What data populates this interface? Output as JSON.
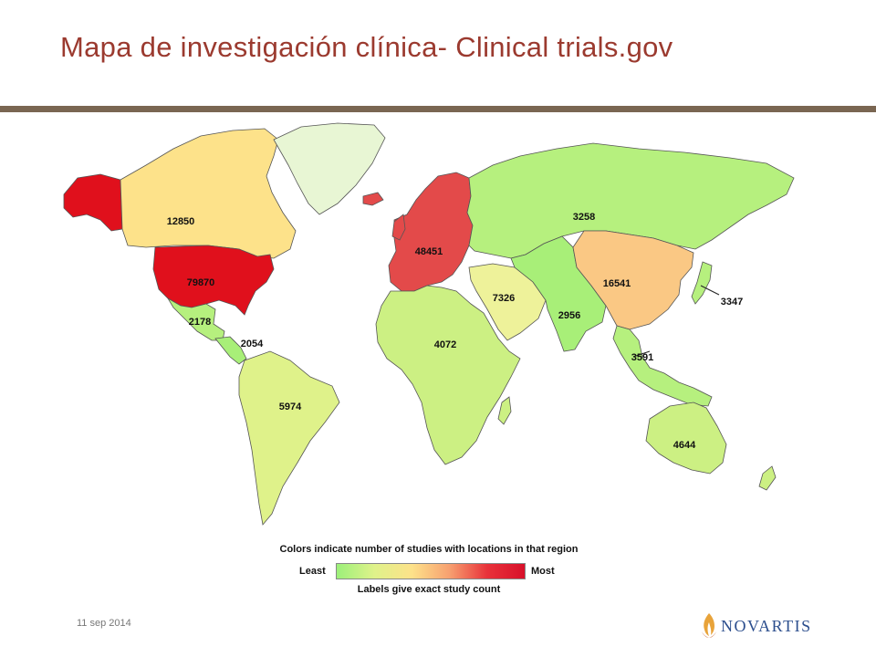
{
  "slide": {
    "title": "Mapa de investigación clínica- Clinical trials.gov",
    "date": "11 sep 2014",
    "logo_text": "NOVARTIS"
  },
  "colors": {
    "title": "#9b3a2f",
    "rule": "#7a6652",
    "ocean": "#ffffff",
    "scale": [
      "#9cf07a",
      "#dff28a",
      "#fde28a",
      "#f7a070",
      "#e8323a",
      "#d8102a"
    ],
    "logo": "#2d4f8e"
  },
  "legend": {
    "title": "Colors indicate number of studies with locations in that region",
    "least": "Least",
    "most": "Most",
    "subtitle": "Labels give exact study count"
  },
  "regions": [
    {
      "id": "canada",
      "label": "12850",
      "value": 12850,
      "color": "#fde28a"
    },
    {
      "id": "united-states",
      "label": "79870",
      "value": 79870,
      "color": "#e0101c"
    },
    {
      "id": "mexico",
      "label": "2178",
      "value": 2178,
      "color": "#b6f07e"
    },
    {
      "id": "central-america",
      "label": "2054",
      "value": 2054,
      "color": "#a8ef78"
    },
    {
      "id": "south-america",
      "label": "5974",
      "value": 5974,
      "color": "#dff28a"
    },
    {
      "id": "europe",
      "label": "48451",
      "value": 48451,
      "color": "#e34a4a"
    },
    {
      "id": "africa",
      "label": "4072",
      "value": 4072,
      "color": "#ccf083"
    },
    {
      "id": "middle-east",
      "label": "7326",
      "value": 7326,
      "color": "#eef29a"
    },
    {
      "id": "russia",
      "label": "3258",
      "value": 3258,
      "color": "#b6f07e"
    },
    {
      "id": "china",
      "label": "16541",
      "value": 16541,
      "color": "#fac884"
    },
    {
      "id": "south-asia",
      "label": "2956",
      "value": 2956,
      "color": "#a8ef78"
    },
    {
      "id": "southeast-asia",
      "label": "3591",
      "value": 3591,
      "color": "#b6f07e"
    },
    {
      "id": "japan",
      "label": "3347",
      "value": 3347,
      "color": "#b6f07e"
    },
    {
      "id": "oceania",
      "label": "4644",
      "value": 4644,
      "color": "#ccf083"
    },
    {
      "id": "greenland",
      "label": "",
      "value": null,
      "color": "#e8f6d4"
    }
  ]
}
